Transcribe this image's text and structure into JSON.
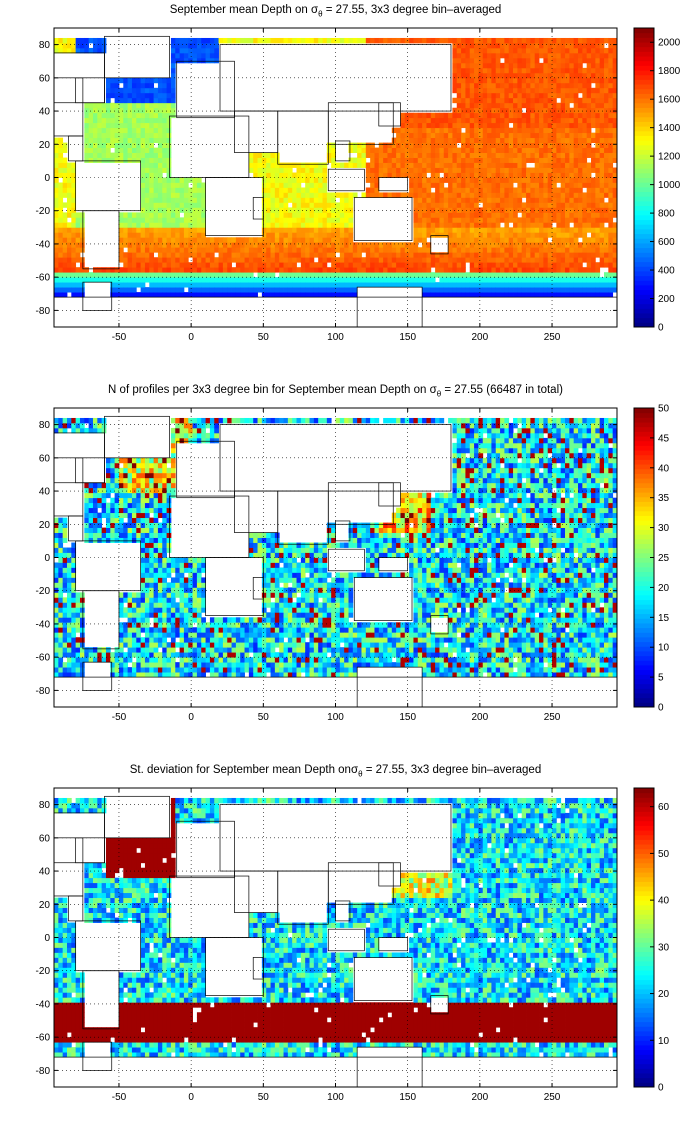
{
  "chart_data": [
    {
      "type": "heatmap",
      "title_prefix": "September mean Depth on ",
      "title_symbol": "σ",
      "title_subscript": "θ",
      "title_suffix": " = 27.55, 3x3 degree bin–averaged",
      "x_ticks": [
        "-50",
        "0",
        "50",
        "100",
        "150",
        "200",
        "250"
      ],
      "x_tick_values": [
        -50,
        0,
        50,
        100,
        150,
        200,
        250
      ],
      "y_ticks": [
        "80",
        "60",
        "40",
        "20",
        "0",
        "-20",
        "-40",
        "-60",
        "-80"
      ],
      "y_tick_values": [
        80,
        60,
        40,
        20,
        0,
        -20,
        -40,
        -60,
        -80
      ],
      "xlim": [
        -95,
        295
      ],
      "ylim": [
        -90,
        90
      ],
      "grid": true,
      "colorbar_ticks": [
        "0",
        "200",
        "400",
        "600",
        "800",
        "1000",
        "1200",
        "1400",
        "1600",
        "1800",
        "2000"
      ],
      "colorbar_values": [
        0,
        200,
        400,
        600,
        800,
        1000,
        1200,
        1400,
        1600,
        1800,
        2000
      ],
      "clim": [
        0,
        2100
      ],
      "colormap": "jet"
    },
    {
      "type": "heatmap",
      "title_prefix": "N of profiles per 3x3 degree bin for September mean Depth on ",
      "title_symbol": "σ",
      "title_subscript": "θ",
      "title_suffix": " = 27.55 (66487 in total)",
      "x_ticks": [
        "-50",
        "0",
        "50",
        "100",
        "150",
        "200",
        "250"
      ],
      "x_tick_values": [
        -50,
        0,
        50,
        100,
        150,
        200,
        250
      ],
      "y_ticks": [
        "80",
        "60",
        "40",
        "20",
        "0",
        "-20",
        "-40",
        "-60",
        "-80"
      ],
      "y_tick_values": [
        80,
        60,
        40,
        20,
        0,
        -20,
        -40,
        -60,
        -80
      ],
      "xlim": [
        -95,
        295
      ],
      "ylim": [
        -90,
        90
      ],
      "grid": true,
      "colorbar_ticks": [
        "0",
        "5",
        "10",
        "15",
        "20",
        "25",
        "30",
        "35",
        "40",
        "45",
        "50"
      ],
      "colorbar_values": [
        0,
        5,
        10,
        15,
        20,
        25,
        30,
        35,
        40,
        45,
        50
      ],
      "clim": [
        0,
        50
      ],
      "colormap": "jet"
    },
    {
      "type": "heatmap",
      "title_prefix": "St. deviation for September mean Depth on",
      "title_symbol": "σ",
      "title_subscript": "θ",
      "title_suffix": " = 27.55, 3x3 degree bin–averaged",
      "x_ticks": [
        "-50",
        "0",
        "50",
        "100",
        "150",
        "200",
        "250"
      ],
      "x_tick_values": [
        -50,
        0,
        50,
        100,
        150,
        200,
        250
      ],
      "y_ticks": [
        "80",
        "60",
        "40",
        "20",
        "0",
        "-20",
        "-40",
        "-60",
        "-80"
      ],
      "y_tick_values": [
        80,
        60,
        40,
        20,
        0,
        -20,
        -40,
        -60,
        -80
      ],
      "xlim": [
        -95,
        295
      ],
      "ylim": [
        -90,
        90
      ],
      "grid": true,
      "colorbar_ticks": [
        "0",
        "10",
        "20",
        "30",
        "40",
        "50",
        "60"
      ],
      "colorbar_values": [
        0,
        10,
        20,
        30,
        40,
        50,
        60
      ],
      "clim": [
        0,
        64
      ],
      "colormap": "jet"
    }
  ]
}
